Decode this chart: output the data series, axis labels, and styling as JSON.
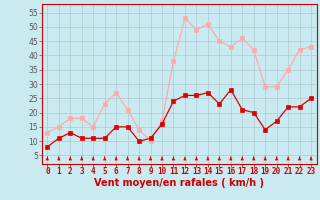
{
  "x": [
    0,
    1,
    2,
    3,
    4,
    5,
    6,
    7,
    8,
    9,
    10,
    11,
    12,
    13,
    14,
    15,
    16,
    17,
    18,
    19,
    20,
    21,
    22,
    23
  ],
  "vent_moyen": [
    8,
    11,
    13,
    11,
    11,
    11,
    15,
    15,
    10,
    11,
    16,
    24,
    26,
    26,
    27,
    23,
    28,
    21,
    20,
    14,
    17,
    22,
    22,
    25
  ],
  "rafales": [
    13,
    15,
    18,
    18,
    15,
    23,
    27,
    21,
    14,
    10,
    17,
    38,
    53,
    49,
    51,
    45,
    43,
    46,
    42,
    29,
    29,
    35,
    42,
    43
  ],
  "line_moyen_color": "#dd0000",
  "line_rafales_color": "#ffaaaa",
  "bg_color": "#c8eaf0",
  "grid_color": "#b0c8d0",
  "xlabel": "Vent moyen/en rafales ( km/h )",
  "yticks": [
    5,
    10,
    15,
    20,
    25,
    30,
    35,
    40,
    45,
    50,
    55
  ],
  "ylim": [
    2,
    58
  ],
  "xlim": [
    -0.5,
    23.5
  ],
  "tick_color": "#cc0000",
  "xlabel_color": "#cc0000",
  "xlabel_fontsize": 7,
  "tick_fontsize": 5.5
}
